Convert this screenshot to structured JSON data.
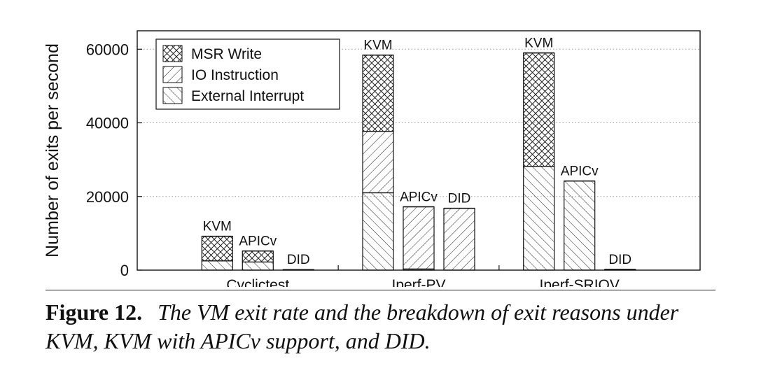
{
  "chart_data": {
    "type": "bar",
    "stacked": true,
    "ylabel": "Number of exits per second",
    "xlabel": "",
    "ylim": [
      0,
      65000
    ],
    "yticks": [
      0,
      20000,
      40000,
      60000
    ],
    "grid": "horizontal dotted",
    "legend_position": "top-left",
    "groups": [
      {
        "name": "Cyclictest",
        "bars": [
          {
            "label": "KVM",
            "values": {
              "External Interrupt": 2500,
              "IO Instruction": 0,
              "MSR Write": 6700
            }
          },
          {
            "label": "APICv",
            "values": {
              "External Interrupt": 2200,
              "IO Instruction": 0,
              "MSR Write": 3000
            }
          },
          {
            "label": "DID",
            "values": {
              "External Interrupt": 150,
              "IO Instruction": 0,
              "MSR Write": 0
            }
          }
        ]
      },
      {
        "name": "Iperf-PV",
        "bars": [
          {
            "label": "KVM",
            "values": {
              "External Interrupt": 21000,
              "IO Instruction": 16700,
              "MSR Write": 20700
            }
          },
          {
            "label": "APICv",
            "values": {
              "External Interrupt": 300,
              "IO Instruction": 16900,
              "MSR Write": 0
            }
          },
          {
            "label": "DID",
            "values": {
              "External Interrupt": 0,
              "IO Instruction": 16800,
              "MSR Write": 0
            }
          }
        ]
      },
      {
        "name": "Iperf-SRIOV",
        "bars": [
          {
            "label": "KVM",
            "values": {
              "External Interrupt": 28200,
              "IO Instruction": 0,
              "MSR Write": 30800
            }
          },
          {
            "label": "APICv",
            "values": {
              "External Interrupt": 24200,
              "IO Instruction": 0,
              "MSR Write": 0
            }
          },
          {
            "label": "DID",
            "values": {
              "External Interrupt": 200,
              "IO Instruction": 0,
              "MSR Write": 0
            }
          }
        ]
      }
    ],
    "series": [
      {
        "name": "MSR Write",
        "pattern": "crosshatch"
      },
      {
        "name": "IO Instruction",
        "pattern": "diagonal-forward"
      },
      {
        "name": "External Interrupt",
        "pattern": "diagonal-backward"
      }
    ]
  },
  "caption": {
    "figure_label": "Figure 12.",
    "text": "The VM exit rate and the breakdown of exit reasons under KVM, KVM with APICv support, and DID."
  }
}
